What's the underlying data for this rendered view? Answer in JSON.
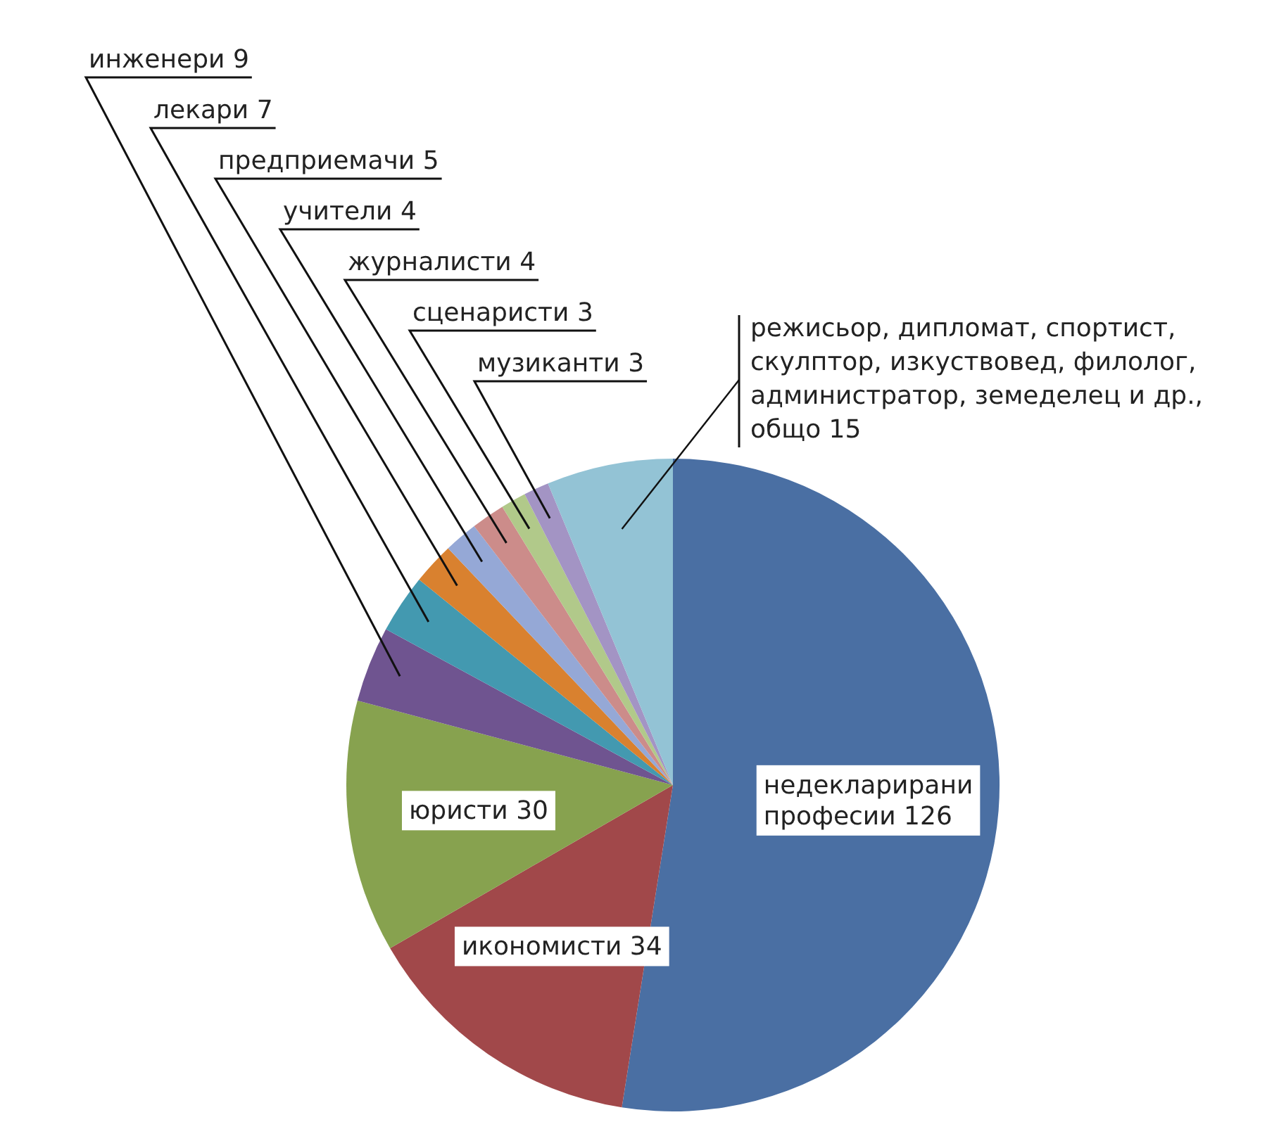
{
  "chart_data": {
    "type": "pie",
    "categories": [
      "недекларирани професии",
      "икономисти",
      "юристи",
      "инженери",
      "лекари",
      "предприемачи",
      "учители",
      "журналисти",
      "сценаристи",
      "музиканти",
      "режисьор, дипломат, спортист, скулптор, изкуствовед, филолог, администратор, земеделец и др., общо"
    ],
    "values": [
      126,
      34,
      30,
      9,
      7,
      5,
      4,
      4,
      3,
      3,
      15
    ],
    "colors": [
      "#4a6fa3",
      "#a1484a",
      "#87a24f",
      "#6f5490",
      "#4399b0",
      "#d9812f",
      "#95a8d6",
      "#cc8c8a",
      "#b1c98a",
      "#a394c4",
      "#93c3d5"
    ],
    "data_labels": true
  }
}
